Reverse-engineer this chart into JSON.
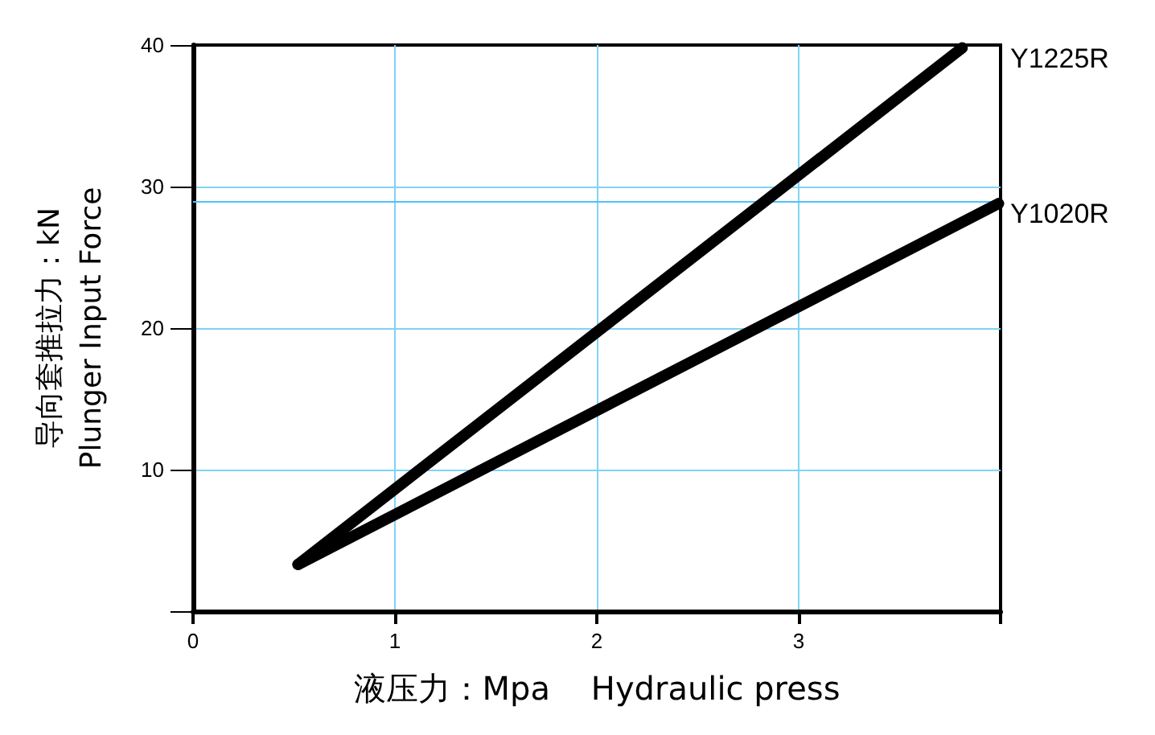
{
  "chart_data": {
    "type": "line",
    "xlabel": "液压力：Mpa    Hydraulic press",
    "ylabel": "导向套推拉力：kN\nPlunger Input Force",
    "series": [
      {
        "name": "Y1225R",
        "color": "#000000",
        "x": [
          0.52,
          3.81
        ],
        "values": [
          3.3,
          39.8
        ]
      },
      {
        "name": "Y1020R",
        "color": "#000000",
        "x": [
          0.52,
          3.99
        ],
        "values": [
          3.3,
          28.8
        ]
      }
    ],
    "xlim": [
      0,
      4
    ],
    "xticks": [
      {
        "value": 0,
        "label": "0"
      },
      1,
      2,
      3,
      {
        "value": 4,
        "label": null
      }
    ],
    "ylim": [
      0,
      40
    ],
    "yticks": [
      {
        "value": 0,
        "label": null
      },
      10,
      20,
      30,
      40
    ],
    "ref_lines": [
      {
        "axis": "y",
        "value": 29,
        "label": null,
        "color": "#4fc3f7"
      }
    ],
    "grid": true,
    "line_style": "solid",
    "legend": false
  }
}
